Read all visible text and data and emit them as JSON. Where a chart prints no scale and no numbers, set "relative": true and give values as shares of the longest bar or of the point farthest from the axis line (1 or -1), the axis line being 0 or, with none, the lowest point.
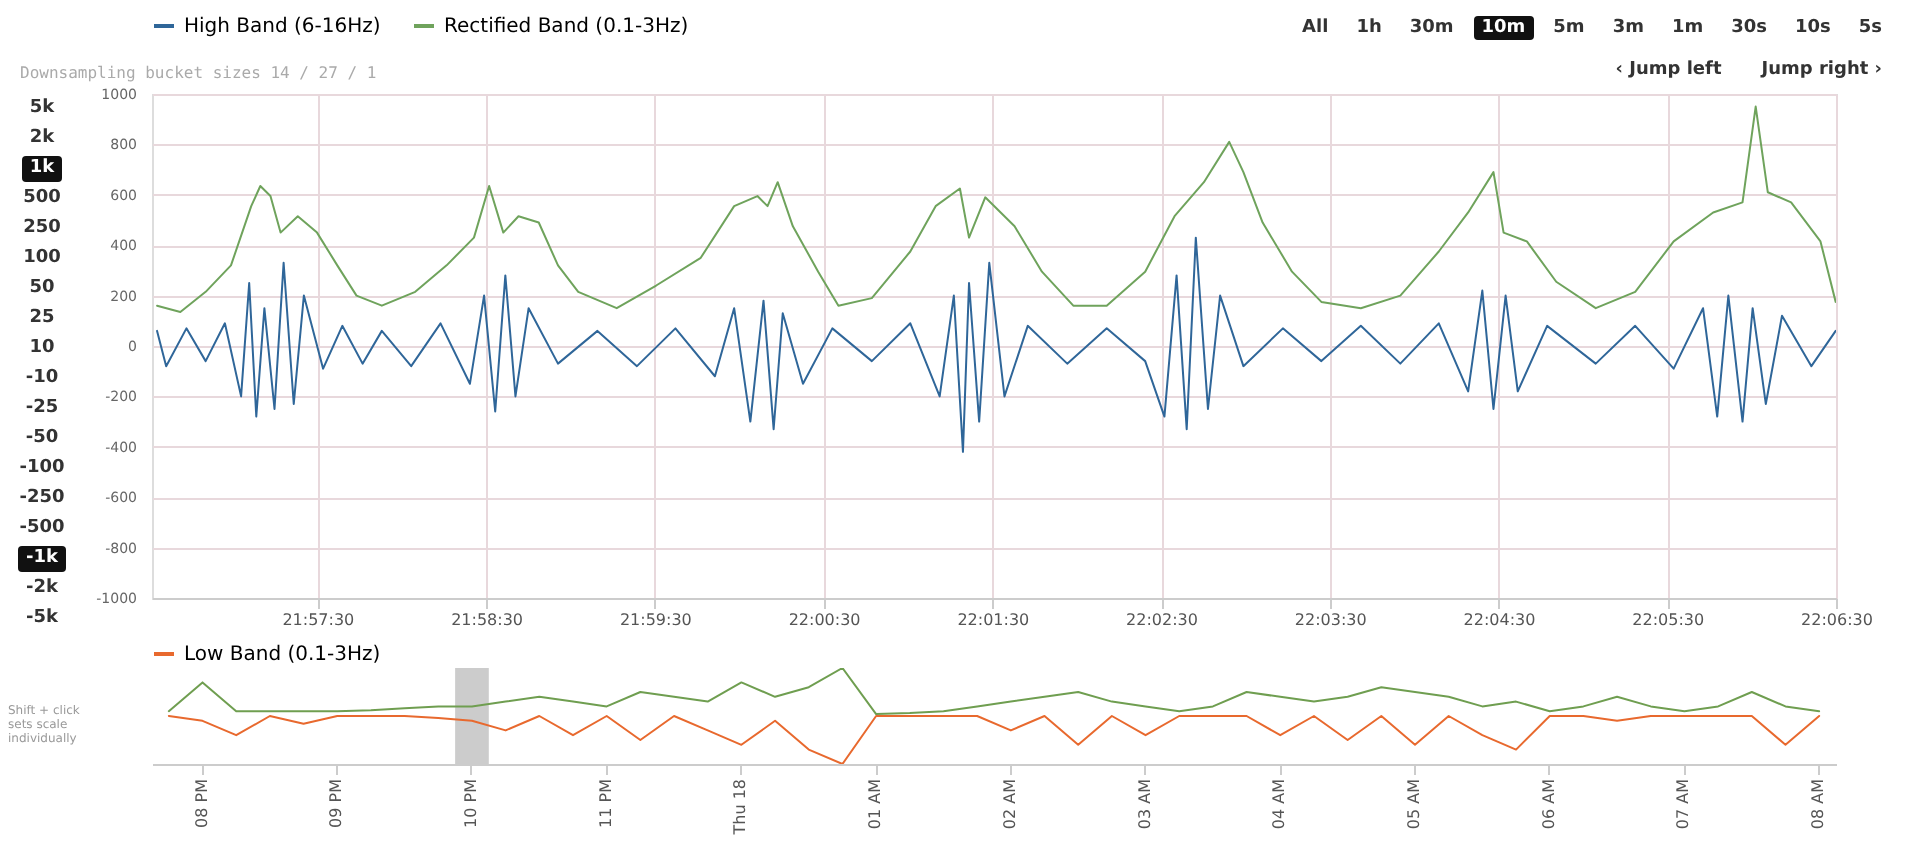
{
  "chart_data": [
    {
      "type": "line",
      "subtitle": "Downsampling bucket sizes 14 / 27 / 1",
      "xlim": [
        21.942,
        22.108333
      ],
      "xticks": [
        {
          "value": 21.958333,
          "label": "21:57:30"
        },
        {
          "value": 21.975,
          "label": "21:58:30"
        },
        {
          "value": 21.991667,
          "label": "21:59:30"
        },
        {
          "value": 22.008333,
          "label": "22:00:30"
        },
        {
          "value": 22.025,
          "label": "22:01:30"
        },
        {
          "value": 22.041667,
          "label": "22:02:30"
        },
        {
          "value": 22.058333,
          "label": "22:03:30"
        },
        {
          "value": 22.075,
          "label": "22:04:30"
        },
        {
          "value": 22.091667,
          "label": "22:05:30"
        },
        {
          "value": 22.108333,
          "label": "22:06:30"
        }
      ],
      "ylim": [
        -1000,
        1000
      ],
      "yticks": [
        -1000,
        -800,
        -600,
        -400,
        -200,
        0,
        200,
        400,
        600,
        800,
        1000
      ],
      "grid": true,
      "legend": "top left",
      "annotations": [
        "All",
        "1h",
        "30m",
        "10m",
        "5m",
        "3m",
        "1m",
        "30s",
        "10s",
        "5s",
        "‹ Jump left",
        "Jump right ›",
        "5k",
        "2k",
        "1k",
        "500",
        "250",
        "100",
        "50",
        "25",
        "10",
        "-10",
        "-25",
        "-50",
        "-100",
        "-250",
        "-500",
        "-1k",
        "-2k",
        "-5k",
        "Shift + click sets scale individually"
      ],
      "series": [
        {
          "name": "High Band (6-16Hz)",
          "color": "#2f6699",
          "x": [
            21.9425,
            21.9434,
            21.9454,
            21.9473,
            21.9492,
            21.9508,
            21.9516,
            21.9523,
            21.9531,
            21.9541,
            21.955,
            21.956,
            21.957,
            21.9589,
            21.9608,
            21.9628,
            21.9647,
            21.9676,
            21.9705,
            21.9734,
            21.9748,
            21.9759,
            21.9769,
            21.9779,
            21.9792,
            21.9821,
            21.986,
            21.9899,
            21.9937,
            21.9976,
            21.9995,
            22.0011,
            22.0024,
            22.0034,
            22.0043,
            22.0063,
            22.0092,
            22.0131,
            22.0169,
            22.0198,
            22.0212,
            22.0221,
            22.0227,
            22.0237,
            22.0247,
            22.0262,
            22.0285,
            22.0324,
            22.0363,
            22.0401,
            22.042,
            22.0432,
            22.0442,
            22.0451,
            22.0463,
            22.0475,
            22.0498,
            22.0537,
            22.0575,
            22.0614,
            22.0653,
            22.0691,
            22.072,
            22.0734,
            22.0745,
            22.0757,
            22.0769,
            22.0798,
            22.0846,
            22.0885,
            22.0923,
            22.0952,
            22.0966,
            22.0977,
            22.0991,
            22.1001,
            22.1014,
            22.103,
            22.1059,
            22.1083
          ],
          "values": [
            60,
            -80,
            70,
            -60,
            90,
            -200,
            250,
            -280,
            150,
            -250,
            330,
            -230,
            200,
            -90,
            80,
            -70,
            60,
            -80,
            90,
            -150,
            200,
            -260,
            280,
            -200,
            150,
            -70,
            60,
            -80,
            70,
            -120,
            150,
            -300,
            180,
            -330,
            130,
            -150,
            70,
            -60,
            90,
            -200,
            200,
            -420,
            250,
            -300,
            330,
            -200,
            80,
            -70,
            70,
            -60,
            -280,
            280,
            -330,
            430,
            -250,
            200,
            -80,
            70,
            -60,
            80,
            -70,
            90,
            -180,
            220,
            -250,
            200,
            -180,
            80,
            -70,
            80,
            -90,
            150,
            -280,
            200,
            -300,
            150,
            -230,
            120,
            -80,
            60
          ]
        },
        {
          "name": "Rectified Band (0.1-3Hz)",
          "color": "#6fa35c",
          "x": [
            21.9425,
            21.9448,
            21.9473,
            21.9498,
            21.9518,
            21.9527,
            21.9537,
            21.9547,
            21.9564,
            21.9583,
            21.9603,
            21.9622,
            21.9647,
            21.968,
            21.9711,
            21.9738,
            21.9753,
            21.9767,
            21.9782,
            21.9802,
            21.9821,
            21.9841,
            21.9879,
            21.9918,
            21.9962,
            21.9995,
            22.0018,
            22.0028,
            22.0038,
            22.0053,
            22.0078,
            22.0098,
            22.0131,
            22.0169,
            22.0194,
            22.0218,
            22.0227,
            22.0243,
            22.0272,
            22.0299,
            22.033,
            22.0363,
            22.0401,
            22.043,
            22.0459,
            22.0484,
            22.0498,
            22.0517,
            22.0546,
            22.0575,
            22.0614,
            22.0653,
            22.0691,
            22.072,
            22.0745,
            22.0755,
            22.0778,
            22.0807,
            22.0846,
            22.0885,
            22.0923,
            22.0962,
            22.0991,
            22.1004,
            22.1016,
            22.1039,
            22.1068,
            22.1083
          ],
          "values": [
            160,
            135,
            215,
            320,
            555,
            635,
            595,
            450,
            515,
            450,
            320,
            200,
            160,
            215,
            320,
            430,
            635,
            450,
            515,
            490,
            320,
            215,
            150,
            240,
            350,
            555,
            595,
            555,
            650,
            475,
            295,
            160,
            190,
            375,
            555,
            625,
            430,
            590,
            475,
            295,
            160,
            160,
            295,
            515,
            650,
            810,
            690,
            490,
            295,
            175,
            150,
            200,
            375,
            530,
            690,
            450,
            415,
            255,
            150,
            215,
            415,
            530,
            570,
            950,
            610,
            570,
            415,
            175
          ]
        }
      ]
    },
    {
      "type": "line",
      "relative": true,
      "categories": [
        null,
        "08 PM",
        null,
        null,
        null,
        "09 PM",
        null,
        null,
        null,
        "10 PM",
        null,
        null,
        null,
        "11 PM",
        null,
        null,
        null,
        "Thu 18",
        null,
        null,
        null,
        "01 AM",
        null,
        null,
        null,
        "02 AM",
        null,
        null,
        null,
        "03 AM",
        null,
        null,
        null,
        "04 AM",
        null,
        null,
        null,
        "05 AM",
        null,
        null,
        null,
        "06 AM",
        null,
        null,
        null,
        "07 AM",
        null,
        null,
        null,
        "08 AM"
      ],
      "bands": [
        {
          "axis": "x",
          "from": "10 PM",
          "to": "10 PM",
          "color": "#cccccc"
        }
      ],
      "legend": "top",
      "series": [
        {
          "name": "Low Band (0.1-3Hz)",
          "color": "#e8692e",
          "values": [
            0.5,
            0.45,
            0.3,
            0.5,
            0.42,
            0.5,
            0.5,
            0.5,
            0.48,
            0.45,
            0.35,
            0.5,
            0.3,
            0.5,
            0.25,
            0.5,
            0.35,
            0.2,
            0.45,
            0.15,
            0,
            0.5,
            0.5,
            0.5,
            0.5,
            0.35,
            0.5,
            0.2,
            0.5,
            0.3,
            0.5,
            0.5,
            0.5,
            0.3,
            0.5,
            0.25,
            0.5,
            0.2,
            0.5,
            0.3,
            0.15,
            0.5,
            0.5,
            0.45,
            0.5,
            0.5,
            0.5,
            0.5,
            0.2,
            0.5
          ]
        },
        {
          "color": "#6f9e50",
          "values": [
            0.55,
            0.85,
            0.55,
            0.55,
            0.55,
            0.55,
            0.56,
            0.58,
            0.6,
            0.6,
            0.65,
            0.7,
            0.65,
            0.6,
            0.75,
            0.7,
            0.65,
            0.85,
            0.7,
            0.8,
            1,
            0.52,
            0.53,
            0.55,
            0.6,
            0.65,
            0.7,
            0.75,
            0.65,
            0.6,
            0.55,
            0.6,
            0.75,
            0.7,
            0.65,
            0.7,
            0.8,
            0.75,
            0.7,
            0.6,
            0.65,
            0.55,
            0.6,
            0.7,
            0.6,
            0.55,
            0.6,
            0.75,
            0.6,
            0.55
          ]
        }
      ]
    }
  ]
}
